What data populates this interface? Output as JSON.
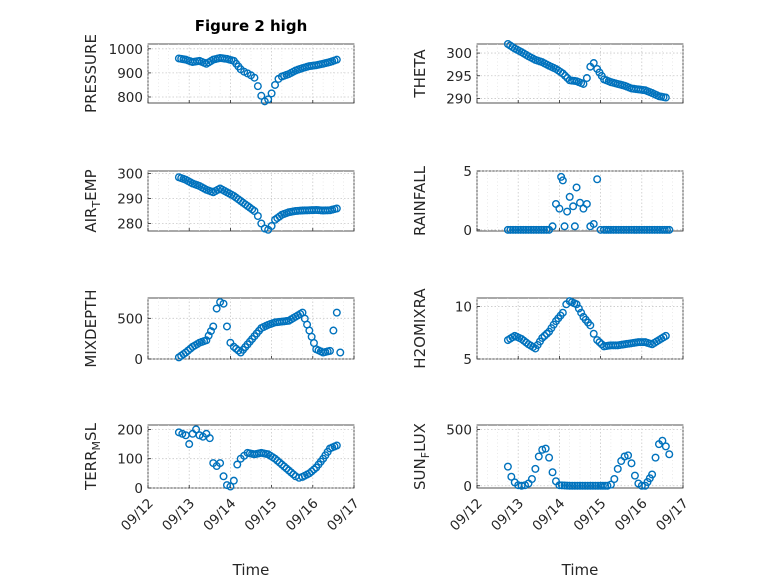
{
  "figure_title": "Figure 2 high",
  "colors": {
    "series": "#0072BD",
    "axes": "#262626",
    "grid": "#c8c8c8"
  },
  "chart_data": [
    {
      "type": "scatter",
      "title": "Figure 2 high",
      "ylabel": "PRESSURE",
      "xlabel": "",
      "grid": true,
      "ylim": [
        775,
        1020
      ],
      "yticks": [
        800,
        900,
        1000
      ],
      "xticks": [
        "09/12",
        "09/13",
        "09/14",
        "09/15",
        "09/16",
        "09/17"
      ],
      "show_xtick_labels": false,
      "series": [
        {
          "x": [
            "09/12 18:00",
            "09/12 22:00",
            "09/13 02:00",
            "09/13 06:00",
            "09/13 10:00",
            "09/13 14:00",
            "09/13 18:00",
            "09/13 22:00",
            "09/14 02:00",
            "09/14 06:00",
            "09/14 08:00",
            "09/14 10:00",
            "09/14 12:00",
            "09/14 14:00",
            "09/14 16:00",
            "09/14 18:00",
            "09/14 20:00",
            "09/14 22:00",
            "09/15 00:00",
            "09/15 02:00",
            "09/15 04:00",
            "09/15 06:00",
            "09/15 10:00",
            "09/15 14:00",
            "09/15 18:00",
            "09/15 22:00",
            "09/16 02:00",
            "09/16 06:00",
            "09/16 10:00",
            "09/16 14:00"
          ],
          "y": [
            960,
            955,
            945,
            950,
            938,
            955,
            962,
            958,
            950,
            915,
            905,
            898,
            890,
            880,
            845,
            805,
            782,
            790,
            815,
            850,
            875,
            885,
            895,
            910,
            920,
            928,
            932,
            938,
            945,
            955
          ]
        }
      ]
    },
    {
      "type": "scatter",
      "title": "",
      "ylabel": "THETA",
      "xlabel": "",
      "grid": true,
      "ylim": [
        289,
        302
      ],
      "yticks": [
        290,
        295,
        300
      ],
      "xticks": [
        "09/12",
        "09/13",
        "09/14",
        "09/15",
        "09/16",
        "09/17"
      ],
      "show_xtick_labels": false,
      "series": [
        {
          "x": [
            "09/12 18:00",
            "09/12 22:00",
            "09/13 02:00",
            "09/13 06:00",
            "09/13 10:00",
            "09/13 14:00",
            "09/13 18:00",
            "09/13 22:00",
            "09/14 02:00",
            "09/14 06:00",
            "09/14 10:00",
            "09/14 14:00",
            "09/14 16:00",
            "09/14 18:00",
            "09/14 20:00",
            "09/14 22:00",
            "09/15 02:00",
            "09/15 06:00",
            "09/15 10:00",
            "09/15 14:00",
            "09/15 18:00",
            "09/15 22:00",
            "09/16 02:00",
            "09/16 06:00",
            "09/16 10:00",
            "09/16 14:00"
          ],
          "y": [
            302,
            301,
            300.2,
            299.3,
            298.5,
            298,
            297.2,
            296.5,
            295.5,
            294,
            293.8,
            293.2,
            294.5,
            297,
            297.8,
            296.5,
            294.2,
            293.6,
            293.2,
            292.8,
            292.2,
            292,
            291.8,
            291.2,
            290.5,
            290.2
          ]
        }
      ]
    },
    {
      "type": "scatter",
      "title": "",
      "ylabel": "AIR_TEMP",
      "xlabel": "",
      "grid": true,
      "ylim": [
        277,
        301
      ],
      "yticks": [
        280,
        290,
        300
      ],
      "xticks": [
        "09/12",
        "09/13",
        "09/14",
        "09/15",
        "09/16",
        "09/17"
      ],
      "show_xtick_labels": false,
      "series": [
        {
          "x": [
            "09/12 18:00",
            "09/12 22:00",
            "09/13 02:00",
            "09/13 06:00",
            "09/13 10:00",
            "09/13 14:00",
            "09/13 18:00",
            "09/13 22:00",
            "09/14 02:00",
            "09/14 06:00",
            "09/14 10:00",
            "09/14 14:00",
            "09/14 16:00",
            "09/14 18:00",
            "09/14 20:00",
            "09/14 22:00",
            "09/15 00:00",
            "09/15 02:00",
            "09/15 06:00",
            "09/15 10:00",
            "09/15 14:00",
            "09/15 18:00",
            "09/15 22:00",
            "09/16 02:00",
            "09/16 06:00",
            "09/16 10:00",
            "09/16 14:00"
          ],
          "y": [
            298.5,
            297.5,
            296,
            295,
            293.5,
            292.5,
            294,
            292.5,
            291,
            289,
            287,
            285,
            283,
            280,
            278,
            277.5,
            279,
            281.5,
            283.5,
            284.5,
            285,
            285.2,
            285.3,
            285.4,
            285.2,
            285.3,
            286
          ]
        }
      ]
    },
    {
      "type": "scatter",
      "title": "",
      "ylabel": "RAINFALL",
      "xlabel": "",
      "grid": true,
      "ylim": [
        -0.1,
        5
      ],
      "yticks": [
        0,
        5
      ],
      "xticks": [
        "09/12",
        "09/13",
        "09/14",
        "09/15",
        "09/16",
        "09/17"
      ],
      "show_xtick_labels": false,
      "series": [
        {
          "x": [
            "09/12 18:00",
            "09/13 00:00",
            "09/13 06:00",
            "09/13 12:00",
            "09/13 18:00",
            "09/13 20:00",
            "09/13 22:00",
            "09/14 00:00",
            "09/14 01:00",
            "09/14 02:00",
            "09/14 03:00",
            "09/14 06:00",
            "09/14 08:00",
            "09/14 09:00",
            "09/14 10:00",
            "09/14 12:00",
            "09/14 14:00",
            "09/14 16:00",
            "09/14 18:00",
            "09/14 20:00",
            "09/14 22:00",
            "09/15 00:00",
            "09/15 02:00",
            "09/15 06:00",
            "09/15 12:00",
            "09/15 18:00",
            "09/16 00:00",
            "09/16 06:00",
            "09/16 12:00",
            "09/16 16:00"
          ],
          "y": [
            0,
            0,
            0,
            0,
            0,
            0.3,
            2.2,
            1.8,
            4.5,
            4.2,
            0.3,
            2.8,
            2.0,
            0.3,
            3.6,
            2.3,
            1.8,
            2.2,
            0.3,
            0.5,
            4.3,
            0,
            0,
            0,
            0,
            0,
            0,
            0,
            0,
            0
          ]
        }
      ]
    },
    {
      "type": "scatter",
      "title": "",
      "ylabel": "MIXDEPTH",
      "xlabel": "",
      "grid": true,
      "ylim": [
        0,
        750
      ],
      "yticks": [
        0,
        500
      ],
      "xticks": [
        "09/12",
        "09/13",
        "09/14",
        "09/15",
        "09/16",
        "09/17"
      ],
      "show_xtick_labels": false,
      "series": [
        {
          "x": [
            "09/12 18:00",
            "09/12 22:00",
            "09/13 02:00",
            "09/13 06:00",
            "09/13 10:00",
            "09/13 14:00",
            "09/13 16:00",
            "09/13 18:00",
            "09/13 20:00",
            "09/13 22:00",
            "09/14 00:00",
            "09/14 02:00",
            "09/14 06:00",
            "09/14 10:00",
            "09/14 14:00",
            "09/14 18:00",
            "09/14 22:00",
            "09/15 02:00",
            "09/15 06:00",
            "09/15 10:00",
            "09/15 14:00",
            "09/15 18:00",
            "09/15 22:00",
            "09/16 02:00",
            "09/16 06:00",
            "09/16 10:00",
            "09/16 12:00",
            "09/16 14:00",
            "09/16 16:00"
          ],
          "y": [
            20,
            80,
            150,
            200,
            230,
            400,
            620,
            700,
            680,
            400,
            200,
            150,
            80,
            180,
            280,
            380,
            420,
            450,
            460,
            470,
            520,
            570,
            350,
            120,
            80,
            100,
            350,
            570,
            80
          ]
        }
      ]
    },
    {
      "type": "scatter",
      "title": "",
      "ylabel": "H2OMIXRA",
      "xlabel": "",
      "grid": true,
      "ylim": [
        5,
        10.8
      ],
      "yticks": [
        5,
        10
      ],
      "xticks": [
        "09/12",
        "09/13",
        "09/14",
        "09/15",
        "09/16",
        "09/17"
      ],
      "show_xtick_labels": false,
      "series": [
        {
          "x": [
            "09/12 18:00",
            "09/12 22:00",
            "09/13 02:00",
            "09/13 06:00",
            "09/13 10:00",
            "09/13 14:00",
            "09/13 18:00",
            "09/13 22:00",
            "09/14 02:00",
            "09/14 04:00",
            "09/14 06:00",
            "09/14 10:00",
            "09/14 14:00",
            "09/14 18:00",
            "09/14 20:00",
            "09/14 22:00",
            "09/15 02:00",
            "09/15 06:00",
            "09/15 10:00",
            "09/15 14:00",
            "09/15 18:00",
            "09/15 22:00",
            "09/16 02:00",
            "09/16 06:00",
            "09/16 10:00",
            "09/16 14:00"
          ],
          "y": [
            6.8,
            7.2,
            6.9,
            6.4,
            6.0,
            7.0,
            7.6,
            8.6,
            9.4,
            10.2,
            10.5,
            10.2,
            9.0,
            8.2,
            7.4,
            6.8,
            6.2,
            6.3,
            6.3,
            6.4,
            6.5,
            6.6,
            6.6,
            6.4,
            6.8,
            7.2
          ]
        }
      ]
    },
    {
      "type": "scatter",
      "title": "",
      "ylabel": "TERR_MSL",
      "xlabel": "Time",
      "grid": true,
      "ylim": [
        0,
        215
      ],
      "yticks": [
        0,
        100,
        200
      ],
      "xticks": [
        "09/12",
        "09/13",
        "09/14",
        "09/15",
        "09/16",
        "09/17"
      ],
      "show_xtick_labels": true,
      "series": [
        {
          "x": [
            "09/12 18:00",
            "09/12 20:00",
            "09/12 22:00",
            "09/13 00:00",
            "09/13 02:00",
            "09/13 04:00",
            "09/13 06:00",
            "09/13 08:00",
            "09/13 10:00",
            "09/13 12:00",
            "09/13 14:00",
            "09/13 16:00",
            "09/13 18:00",
            "09/13 20:00",
            "09/13 22:00",
            "09/14 00:00",
            "09/14 02:00",
            "09/14 04:00",
            "09/14 06:00",
            "09/14 08:00",
            "09/14 10:00",
            "09/14 14:00",
            "09/14 18:00",
            "09/14 22:00",
            "09/15 02:00",
            "09/15 06:00",
            "09/15 10:00",
            "09/15 14:00",
            "09/15 16:00",
            "09/15 18:00",
            "09/15 22:00",
            "09/16 02:00",
            "09/16 06:00",
            "09/16 10:00",
            "09/16 14:00"
          ],
          "y": [
            190,
            185,
            180,
            150,
            185,
            200,
            180,
            175,
            185,
            170,
            85,
            75,
            85,
            40,
            10,
            5,
            25,
            80,
            100,
            110,
            120,
            115,
            120,
            115,
            100,
            80,
            60,
            40,
            35,
            38,
            50,
            70,
            100,
            135,
            145
          ]
        }
      ]
    },
    {
      "type": "scatter",
      "title": "",
      "ylabel": "SUN_FLUX",
      "xlabel": "Time",
      "grid": true,
      "ylim": [
        -20,
        540
      ],
      "yticks": [
        0,
        500
      ],
      "xticks": [
        "09/12",
        "09/13",
        "09/14",
        "09/15",
        "09/16",
        "09/17"
      ],
      "show_xtick_labels": true,
      "series": [
        {
          "x": [
            "09/12 18:00",
            "09/12 20:00",
            "09/12 22:00",
            "09/13 00:00",
            "09/13 02:00",
            "09/13 04:00",
            "09/13 06:00",
            "09/13 08:00",
            "09/13 10:00",
            "09/13 12:00",
            "09/13 14:00",
            "09/13 16:00",
            "09/13 18:00",
            "09/13 20:00",
            "09/13 22:00",
            "09/14 00:00",
            "09/14 06:00",
            "09/14 12:00",
            "09/14 18:00",
            "09/15 00:00",
            "09/15 04:00",
            "09/15 06:00",
            "09/15 08:00",
            "09/15 10:00",
            "09/15 12:00",
            "09/15 14:00",
            "09/15 16:00",
            "09/15 18:00",
            "09/15 20:00",
            "09/15 22:00",
            "09/16 00:00",
            "09/16 02:00",
            "09/16 06:00",
            "09/16 08:00",
            "09/16 10:00",
            "09/16 12:00",
            "09/16 14:00",
            "09/16 16:00"
          ],
          "y": [
            170,
            80,
            30,
            5,
            0,
            5,
            20,
            60,
            150,
            260,
            320,
            330,
            250,
            120,
            40,
            5,
            0,
            0,
            0,
            0,
            0,
            10,
            60,
            150,
            220,
            260,
            270,
            200,
            90,
            20,
            0,
            0,
            100,
            250,
            370,
            400,
            350,
            280
          ]
        }
      ]
    }
  ]
}
